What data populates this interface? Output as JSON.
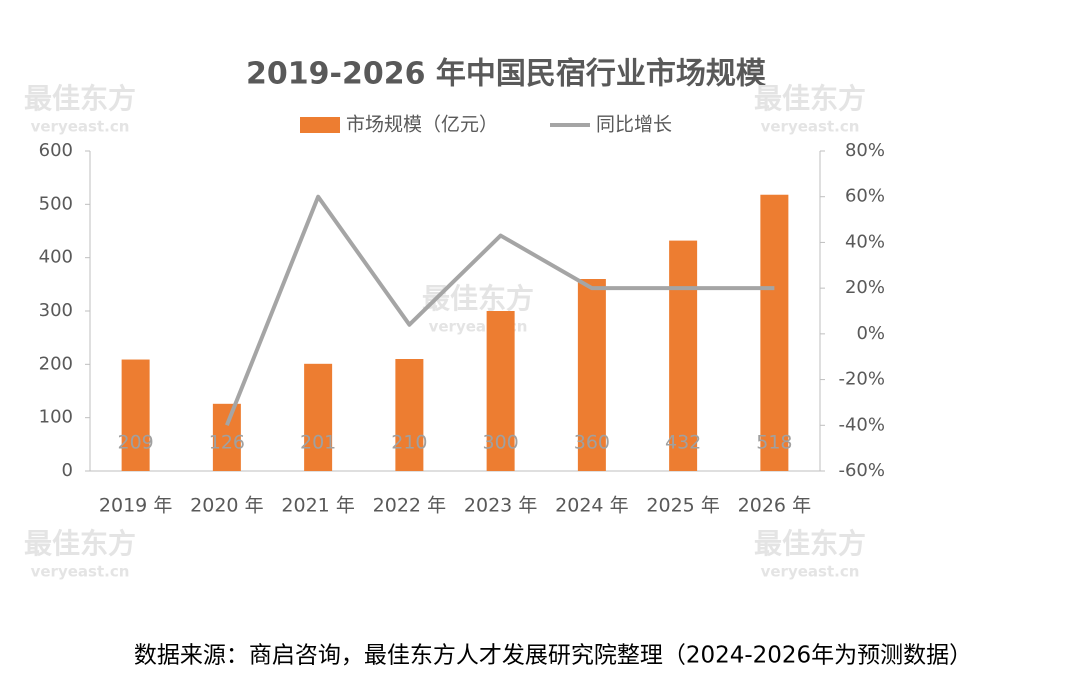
{
  "chart_data": {
    "type": "bar",
    "title": "2019-2026 年中国民宿行业市场规模",
    "categories": [
      "2019 年",
      "2020 年",
      "2021 年",
      "2022 年",
      "2023 年",
      "2024 年",
      "2025 年",
      "2026 年"
    ],
    "series": [
      {
        "name": "市场规模（亿元）",
        "color": "#ed7d31",
        "type": "bar",
        "values": [
          209,
          126,
          201,
          210,
          300,
          360,
          432,
          518
        ]
      },
      {
        "name": "同比增长",
        "color": "#a5a5a5",
        "type": "line",
        "axis": "y2",
        "values": [
          null,
          -40,
          60,
          4,
          43,
          20,
          20,
          20
        ]
      }
    ],
    "ylim": [
      0,
      600
    ],
    "yticks": [
      0,
      100,
      200,
      300,
      400,
      500,
      600
    ],
    "y2lim": [
      -60,
      80
    ],
    "y2ticks": [
      {
        "value": -60,
        "label": "-60%"
      },
      {
        "value": -40,
        "label": "-40%"
      },
      {
        "value": -20,
        "label": "-20%"
      },
      {
        "value": 0,
        "label": "0%"
      },
      {
        "value": 20,
        "label": "20%"
      },
      {
        "value": 40,
        "label": "40%"
      },
      {
        "value": 60,
        "label": "60%"
      },
      {
        "value": 80,
        "label": "80%"
      }
    ],
    "legend": "top",
    "watermark": [
      "最佳东方",
      "veryeast.cn"
    ],
    "note": "数据来源：商启咨询，最佳东方人才发展研究院整理（2024-2026年为预测数据）"
  }
}
